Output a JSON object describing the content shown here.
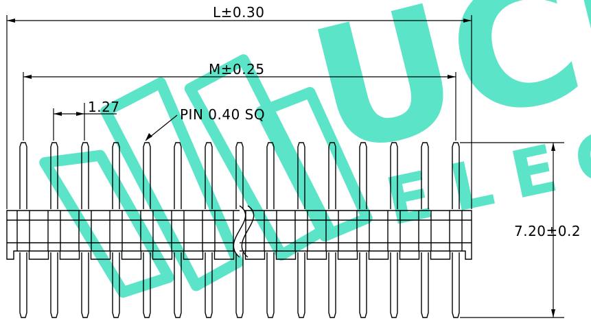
{
  "dimensions": {
    "overall_length": "L±0.30",
    "pin_row_length": "M±0.25",
    "pitch": "1.27",
    "pin_spec": "PIN 0.40 SQ",
    "height": "7.20±0.2"
  },
  "watermark": {
    "text_large": "UCI",
    "text_small": "ELEC",
    "color": "#3fe0c0"
  },
  "drawing": {
    "pin_count": 15,
    "line_color": "#000000"
  }
}
